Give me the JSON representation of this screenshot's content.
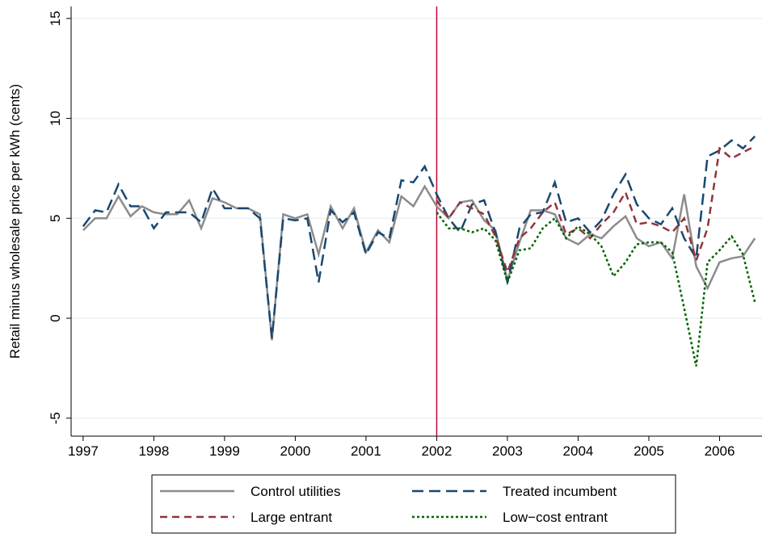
{
  "chart_data": {
    "type": "line",
    "y_label": "Retail minus wholesale price per kWh (cents)",
    "x": [
      1997,
      1997.17,
      1997.33,
      1997.5,
      1997.67,
      1997.83,
      1998,
      1998.17,
      1998.33,
      1998.5,
      1998.67,
      1998.83,
      1999,
      1999.17,
      1999.33,
      1999.5,
      1999.67,
      1999.83,
      2000,
      2000.17,
      2000.33,
      2000.5,
      2000.67,
      2000.83,
      2001,
      2001.17,
      2001.33,
      2001.5,
      2001.67,
      2001.83,
      2002,
      2002.17,
      2002.33,
      2002.5,
      2002.67,
      2002.83,
      2003,
      2003.17,
      2003.33,
      2003.5,
      2003.67,
      2003.83,
      2004,
      2004.17,
      2004.33,
      2004.5,
      2004.67,
      2004.83,
      2005,
      2005.17,
      2005.33,
      2005.5,
      2005.67,
      2005.83,
      2006,
      2006.17,
      2006.33,
      2006.5
    ],
    "series": [
      {
        "name": "Control utilities",
        "color": "#8c8c8c",
        "style": "solid",
        "values": [
          4.4,
          5.0,
          5.0,
          6.1,
          5.1,
          5.6,
          5.3,
          5.2,
          5.2,
          5.9,
          4.5,
          6.0,
          5.8,
          5.5,
          5.5,
          5.2,
          -1.1,
          5.2,
          5.0,
          5.2,
          3.2,
          5.6,
          4.5,
          5.5,
          3.3,
          4.4,
          3.8,
          6.1,
          5.6,
          6.6,
          5.6,
          5.0,
          5.8,
          5.9,
          4.9,
          4.4,
          1.9,
          3.8,
          5.4,
          5.4,
          5.2,
          4.0,
          3.7,
          4.2,
          4.0,
          4.6,
          5.1,
          4.0,
          3.6,
          3.8,
          3.0,
          6.2,
          2.6,
          1.5,
          2.8,
          3.0,
          3.1,
          4.0
        ]
      },
      {
        "name": "Treated incumbent",
        "color": "#1a476f",
        "style": "long-dash",
        "values": [
          4.6,
          5.4,
          5.3,
          6.7,
          5.6,
          5.6,
          4.5,
          5.3,
          5.3,
          5.3,
          4.8,
          6.5,
          5.5,
          5.5,
          5.5,
          5.0,
          -1.0,
          5.0,
          4.9,
          5.0,
          1.8,
          5.4,
          4.8,
          5.3,
          3.2,
          4.3,
          4.0,
          6.9,
          6.8,
          7.6,
          6.2,
          5.0,
          4.3,
          5.7,
          5.9,
          4.3,
          1.8,
          4.5,
          5.2,
          5.3,
          6.8,
          4.8,
          5.0,
          4.3,
          4.9,
          6.2,
          7.2,
          5.7,
          5.0,
          4.7,
          5.5,
          4.0,
          3.0,
          8.1,
          8.4,
          8.9,
          8.5,
          9.1
        ]
      },
      {
        "name": "Large entrant",
        "color": "#90353b",
        "style": "dash",
        "values": [
          null,
          null,
          null,
          null,
          null,
          null,
          null,
          null,
          null,
          null,
          null,
          null,
          null,
          null,
          null,
          null,
          null,
          null,
          null,
          null,
          null,
          null,
          null,
          null,
          null,
          null,
          null,
          null,
          null,
          null,
          5.9,
          5.0,
          5.8,
          5.5,
          5.2,
          4.1,
          2.3,
          4.0,
          4.5,
          5.3,
          5.8,
          4.2,
          4.5,
          4.0,
          4.7,
          5.3,
          6.3,
          4.7,
          4.8,
          4.6,
          4.3,
          5.0,
          2.9,
          4.5,
          8.5,
          8.0,
          8.3,
          8.6
        ]
      },
      {
        "name": "Low−cost entrant",
        "color": "#006400",
        "style": "dot",
        "values": [
          null,
          null,
          null,
          null,
          null,
          null,
          null,
          null,
          null,
          null,
          null,
          null,
          null,
          null,
          null,
          null,
          null,
          null,
          null,
          null,
          null,
          null,
          null,
          null,
          null,
          null,
          null,
          null,
          null,
          null,
          5.3,
          4.5,
          4.5,
          4.3,
          4.5,
          3.9,
          1.8,
          3.4,
          3.5,
          4.5,
          5.0,
          4.0,
          4.6,
          4.2,
          3.6,
          2.1,
          2.8,
          3.7,
          3.8,
          3.8,
          3.3,
          0.5,
          -2.4,
          2.8,
          3.4,
          4.1,
          3.2,
          0.8
        ]
      }
    ],
    "vline": 2002,
    "vline_color": "#c10534",
    "xlim": [
      1996.83,
      2006.6
    ],
    "xticks": [
      1997,
      1998,
      1999,
      2000,
      2001,
      2002,
      2003,
      2004,
      2005,
      2006
    ],
    "ylim": [
      -5.9,
      15.6
    ],
    "yticks": [
      -5,
      0,
      5,
      10,
      15
    ],
    "grid": true
  }
}
